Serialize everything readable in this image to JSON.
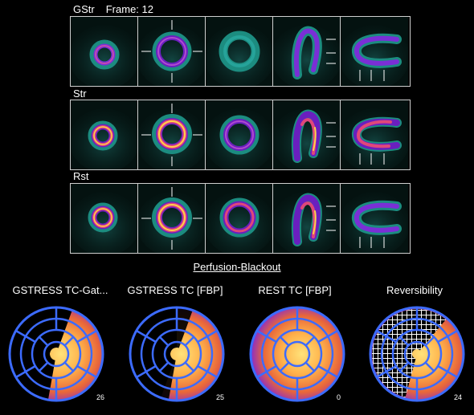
{
  "rows": [
    {
      "label": "GStr",
      "frame_label": "Frame: 12"
    },
    {
      "label": "Str",
      "frame_label": ""
    },
    {
      "label": "Rst",
      "frame_label": ""
    }
  ],
  "section_title": "Perfusion-Blackout",
  "maps": [
    {
      "title": "GSTRESS TC-Gat...",
      "value": "26",
      "type": "blackout"
    },
    {
      "title": "GSTRESS TC [FBP]",
      "value": "25",
      "type": "blackout"
    },
    {
      "title": "REST TC [FBP]",
      "value": "0",
      "type": "normal"
    },
    {
      "title": "Reversibility",
      "value": "24",
      "type": "reversibility"
    }
  ],
  "colors": {
    "background": "#000000",
    "ring_blue": "#3c6bff",
    "hot_outer": "#6a1fbf",
    "hot_mid": "#e0477a",
    "hot_inner": "#ffd24a",
    "tissue_teal": "#1e6f6a"
  }
}
